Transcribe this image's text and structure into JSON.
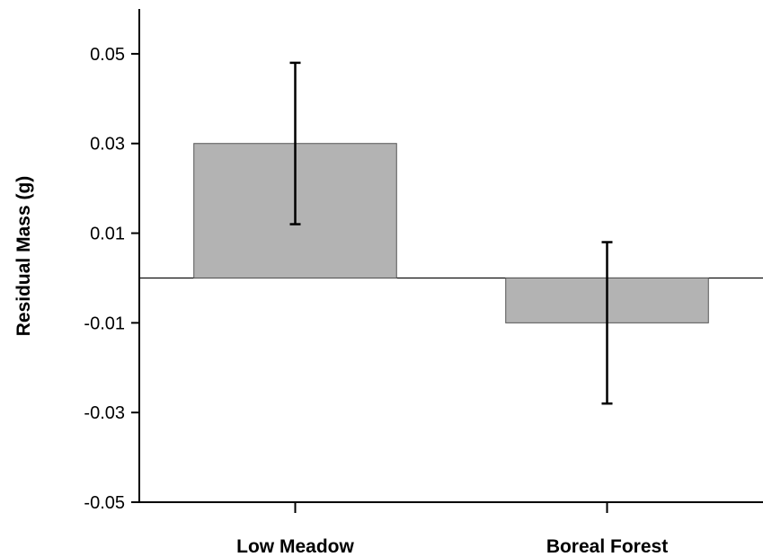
{
  "chart_data": {
    "type": "bar",
    "title": "",
    "xlabel": "",
    "ylabel": "Residual Mass (g)",
    "categories": [
      "Low Meadow",
      "Boreal Forest"
    ],
    "values": [
      0.03,
      -0.01
    ],
    "error_low": [
      0.012,
      -0.028
    ],
    "error_high": [
      0.048,
      0.008
    ],
    "ylim": [
      -0.05,
      0.06
    ],
    "yticks": [
      0.05,
      0.03,
      0.01,
      -0.01,
      -0.03,
      -0.05
    ],
    "ytick_labels": [
      "0.05",
      "0.03",
      "0.01",
      "-0.01",
      "-0.03",
      "-0.05"
    ],
    "bar_color": "#b3b3b3",
    "grid": false,
    "legend": "none"
  }
}
